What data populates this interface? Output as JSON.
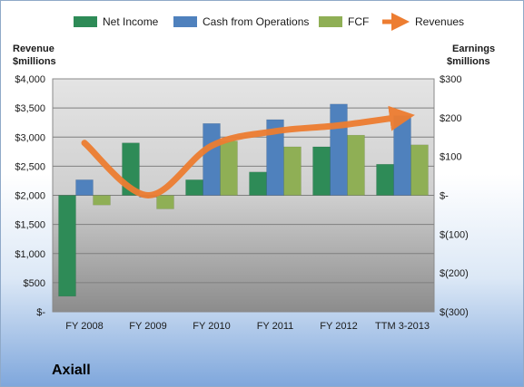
{
  "chart_data": {
    "type": "bar",
    "company": "Axiall",
    "categories": [
      "FY 2008",
      "FY 2009",
      "FY 2010",
      "FY 2011",
      "FY 2012",
      "TTM 3-2013"
    ],
    "left_axis": {
      "label_line1": "Revenue",
      "label_line2": "$millions",
      "ticks": [
        "$4,000",
        "$3,500",
        "$3,000",
        "$2,500",
        "$2,000",
        "$1,500",
        "$1,000",
        "$500",
        "$-"
      ],
      "ylim": [
        0,
        4000
      ]
    },
    "right_axis": {
      "label_line1": "Earnings",
      "label_line2": "$millions",
      "ticks": [
        "$300",
        "$200",
        "$100",
        "$-",
        "$(100)",
        "$(200)",
        "$(300)"
      ],
      "ylim": [
        -300,
        300
      ]
    },
    "series": [
      {
        "name": "Net Income",
        "axis": "right",
        "type": "bar",
        "color": "#2e8b57",
        "values": [
          -260,
          135,
          40,
          60,
          125,
          80
        ]
      },
      {
        "name": "Cash from Operations",
        "axis": "right",
        "type": "bar",
        "color": "#4f81bd",
        "values": [
          40,
          -5,
          185,
          195,
          235,
          205
        ]
      },
      {
        "name": "FCF",
        "axis": "right",
        "type": "bar",
        "color": "#8faf55",
        "values": [
          -25,
          -35,
          140,
          125,
          155,
          130
        ]
      },
      {
        "name": "Revenues",
        "axis": "left",
        "type": "line",
        "color": "#ed7d31",
        "values": [
          2900,
          2000,
          2850,
          3100,
          3200,
          3350
        ]
      }
    ],
    "grid": true,
    "legend_position": "top"
  }
}
